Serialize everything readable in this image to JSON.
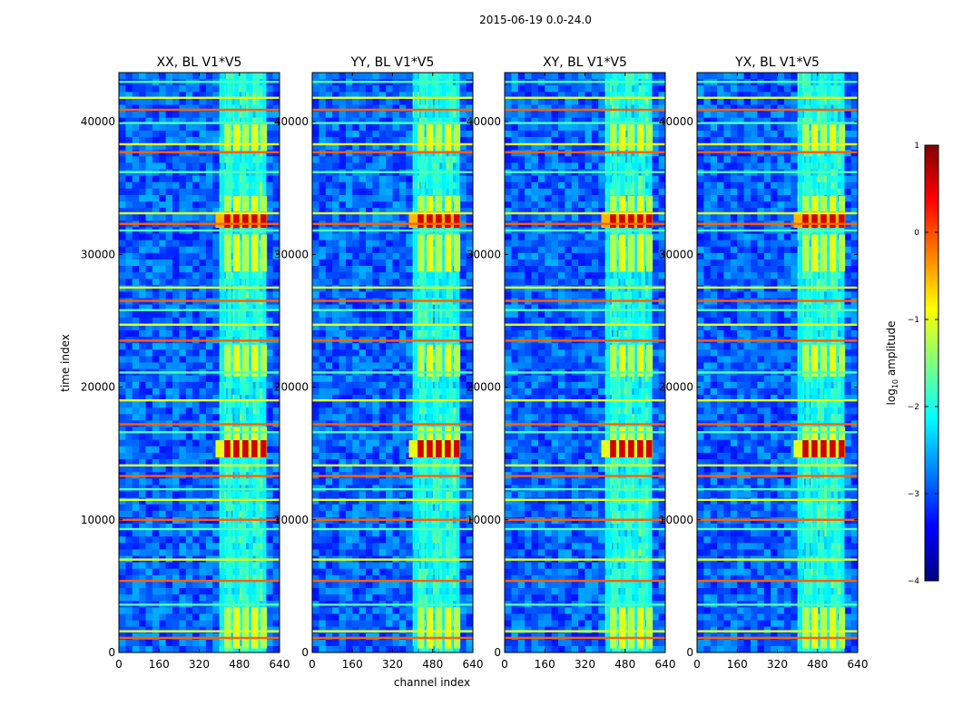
{
  "chart_data": {
    "type": "heatmap",
    "suptitle": "2015-06-19 0.0-24.0",
    "xlabel": "channel index",
    "ylabel": "time index",
    "xlim": [
      0,
      640
    ],
    "ylim": [
      0,
      43700
    ],
    "x_ticks": [
      0,
      160,
      320,
      480,
      640
    ],
    "y_ticks": [
      0,
      10000,
      20000,
      30000,
      40000
    ],
    "panels": [
      {
        "title": "XX, BL V1*V5",
        "pol": "XX"
      },
      {
        "title": "YY, BL V1*V5",
        "pol": "YY"
      },
      {
        "title": "XY, BL V1*V5",
        "pol": "XY"
      },
      {
        "title": "YX, BL V1*V5",
        "pol": "YX"
      }
    ],
    "colorbar": {
      "label_prefix": "log",
      "label_sub": "10",
      "label_suffix": " amplitude",
      "range": [
        -4,
        1
      ],
      "ticks": [
        1,
        0,
        -1,
        -2,
        -3,
        -4
      ],
      "tick_labels": [
        "1",
        "0",
        "−1",
        "−2",
        "−3",
        "−4"
      ],
      "colormap": "jet"
    },
    "features": {
      "high_amplitude_channel_band": [
        405,
        600
      ],
      "strong_blocks": [
        {
          "t0": 32000,
          "t1": 33200,
          "level": 0.7
        },
        {
          "t0": 14700,
          "t1": 16000,
          "level": 0.6
        }
      ],
      "medium_blocks": [
        {
          "t0": 37800,
          "t1": 39800
        },
        {
          "t0": 33200,
          "t1": 34400
        },
        {
          "t0": 28700,
          "t1": 31500
        },
        {
          "t0": 20800,
          "t1": 23200
        },
        {
          "t0": 16000,
          "t1": 17000
        },
        {
          "t0": 300,
          "t1": 3400
        }
      ],
      "flagged_rows": [
        1100,
        1600,
        3600,
        5400,
        7000,
        9300,
        10000,
        11500,
        12300,
        13300,
        14100,
        16600,
        17200,
        19000,
        21100,
        23500,
        24700,
        25800,
        26500,
        27500,
        31800,
        32300,
        33100,
        36200,
        37700,
        38300,
        39900,
        40900,
        41800,
        43000
      ]
    }
  }
}
